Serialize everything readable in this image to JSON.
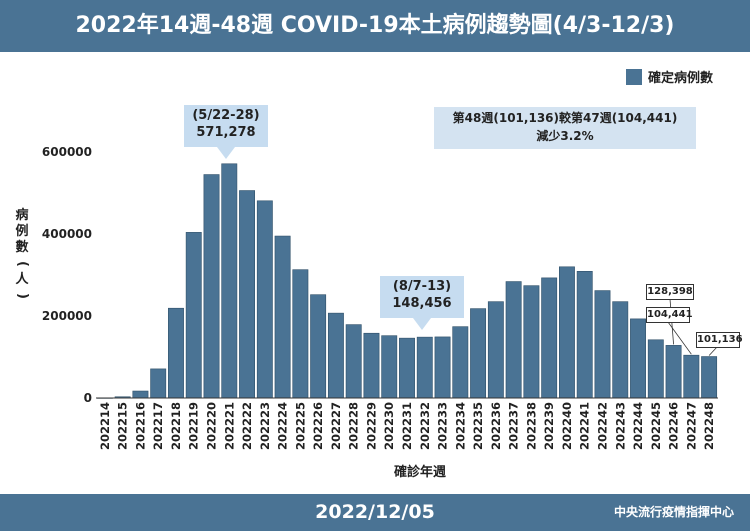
{
  "header": {
    "title": "2022年14週-48週 COVID-19本土病例趨勢圖(4/3-12/3)"
  },
  "footer": {
    "date": "2022/12/05",
    "org": "中央流行疫情指揮中心"
  },
  "colors": {
    "bar": "#4a7394",
    "callout": "#c6dcf0",
    "note": "#d4e3f1"
  },
  "chart_data": {
    "type": "bar",
    "title": "2022年14週-48週 COVID-19本土病例趨勢圖(4/3-12/3)",
    "xlabel": "確診年週",
    "ylabel": "病例數(人)",
    "ylim": [
      0,
      600000
    ],
    "yticks": [
      "0",
      "200000",
      "400000",
      "600000"
    ],
    "grid": false,
    "legend": {
      "position": "top-right",
      "label": "確定病例數"
    },
    "categories": [
      "202214",
      "202215",
      "202216",
      "202217",
      "202218",
      "202219",
      "202220",
      "202221",
      "202222",
      "202223",
      "202224",
      "202225",
      "202226",
      "202227",
      "202228",
      "202229",
      "202230",
      "202231",
      "202232",
      "202233",
      "202234",
      "202235",
      "202236",
      "202237",
      "202238",
      "202239",
      "202240",
      "202241",
      "202242",
      "202243",
      "202244",
      "202245",
      "202246",
      "202247",
      "202248"
    ],
    "series": [
      {
        "name": "確定病例數",
        "values": [
          300,
          3000,
          17000,
          71000,
          219000,
          404000,
          545000,
          571278,
          506000,
          481000,
          395000,
          313000,
          252000,
          207000,
          179000,
          158000,
          152000,
          146000,
          148456,
          149000,
          174000,
          218000,
          235000,
          284000,
          274000,
          293000,
          320000,
          309000,
          262000,
          235000,
          193000,
          142000,
          128398,
          104441,
          101136
        ]
      }
    ],
    "annotations": {
      "peak": {
        "line1": "(5/22-28)",
        "line2": "571,278"
      },
      "trough": {
        "line1": "(8/7-13)",
        "line2": "148,456"
      },
      "note": {
        "line1": "第48週(101,136)較第47週(104,441)",
        "line2": "減少3.2%"
      },
      "labels": [
        "128,398",
        "104,441",
        "101,136"
      ]
    }
  }
}
